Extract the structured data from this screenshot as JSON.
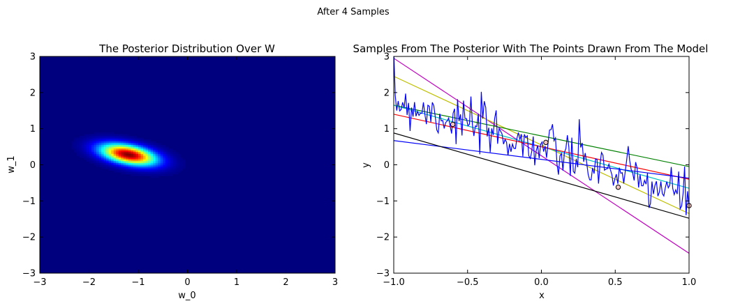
{
  "suptitle": "After 4 Samples",
  "chart_data": [
    {
      "type": "heatmap",
      "title": "The Posterior Distribution Over W",
      "xlabel": "w_0",
      "ylabel": "w_1",
      "xlim": [
        -3,
        3
      ],
      "ylim": [
        -3,
        3
      ],
      "xticks": [
        -3,
        -2,
        -1,
        0,
        1,
        2,
        3
      ],
      "yticks": [
        -3,
        -2,
        -1,
        0,
        1,
        2,
        3
      ],
      "colormap": "jet",
      "background_color": "#00007f",
      "distribution": {
        "mean": [
          -1.2,
          0.28
        ],
        "std": [
          0.38,
          0.2
        ],
        "correlation": -0.45
      },
      "grid": false,
      "legend": "none"
    },
    {
      "type": "line",
      "title": "Samples From The Posterior With The Points Drawn From The Model",
      "xlabel": "x",
      "ylabel": "y",
      "xlim": [
        -1.0,
        1.0
      ],
      "ylim": [
        -3,
        3
      ],
      "xticks": [
        -1.0,
        -0.5,
        0.0,
        0.5,
        1.0
      ],
      "yticks": [
        -3,
        -2,
        -1,
        0,
        1,
        2,
        3
      ],
      "grid": false,
      "legend": "none",
      "lines": [
        {
          "color": "#bf00bf",
          "intercept": 0.25,
          "slope": -2.7
        },
        {
          "color": "#bfbf00",
          "intercept": 0.55,
          "slope": -1.9
        },
        {
          "color": "#008000",
          "intercept": 0.8,
          "slope": -0.85
        },
        {
          "color": "#00bfbf",
          "intercept": 0.5,
          "slope": -1.15
        },
        {
          "color": "#ff0000",
          "intercept": 0.5,
          "slope": -0.9
        },
        {
          "color": "#0000ff",
          "intercept": 0.15,
          "slope": -0.52
        },
        {
          "color": "#000000",
          "intercept": -0.3,
          "slope": -1.18
        }
      ],
      "noisy_series": {
        "color": "#0000ff",
        "n": 200,
        "intercept": 0.45,
        "slope": -1.35,
        "noise_std": 0.35
      },
      "points": [
        {
          "x": -0.6,
          "y": 1.12
        },
        {
          "x": 0.03,
          "y": 0.62
        },
        {
          "x": 0.52,
          "y": -0.62
        },
        {
          "x": 1.0,
          "y": -1.13
        }
      ]
    }
  ]
}
